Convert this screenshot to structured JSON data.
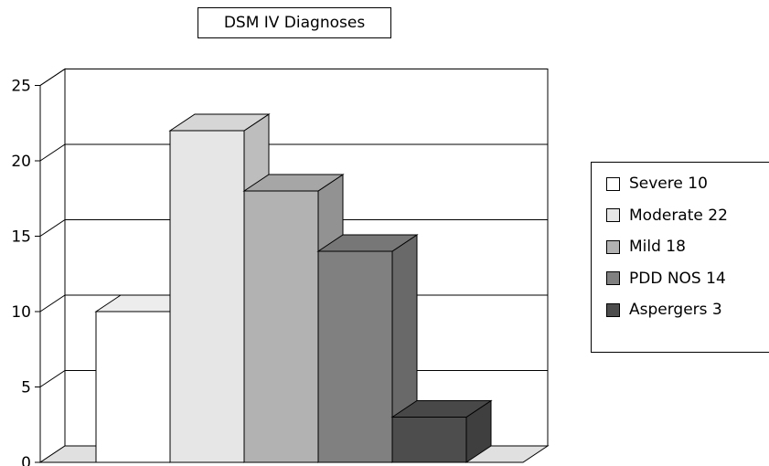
{
  "chart_data": {
    "type": "bar",
    "title": "DSM IV Diagnoses",
    "categories": [
      "Severe 10",
      "Moderate 22",
      "Mild 18",
      "PDD NOS 14",
      "Aspergers 3"
    ],
    "values": [
      10,
      22,
      18,
      14,
      3
    ],
    "colors": [
      "#ffffff",
      "#e6e6e6",
      "#b2b2b2",
      "#808080",
      "#4d4d4d"
    ],
    "y_ticks": [
      "0",
      "5",
      "10",
      "15",
      "20",
      "25"
    ],
    "ylim": [
      0,
      25
    ],
    "grid": true,
    "three_d": true,
    "legend_position": "right"
  }
}
